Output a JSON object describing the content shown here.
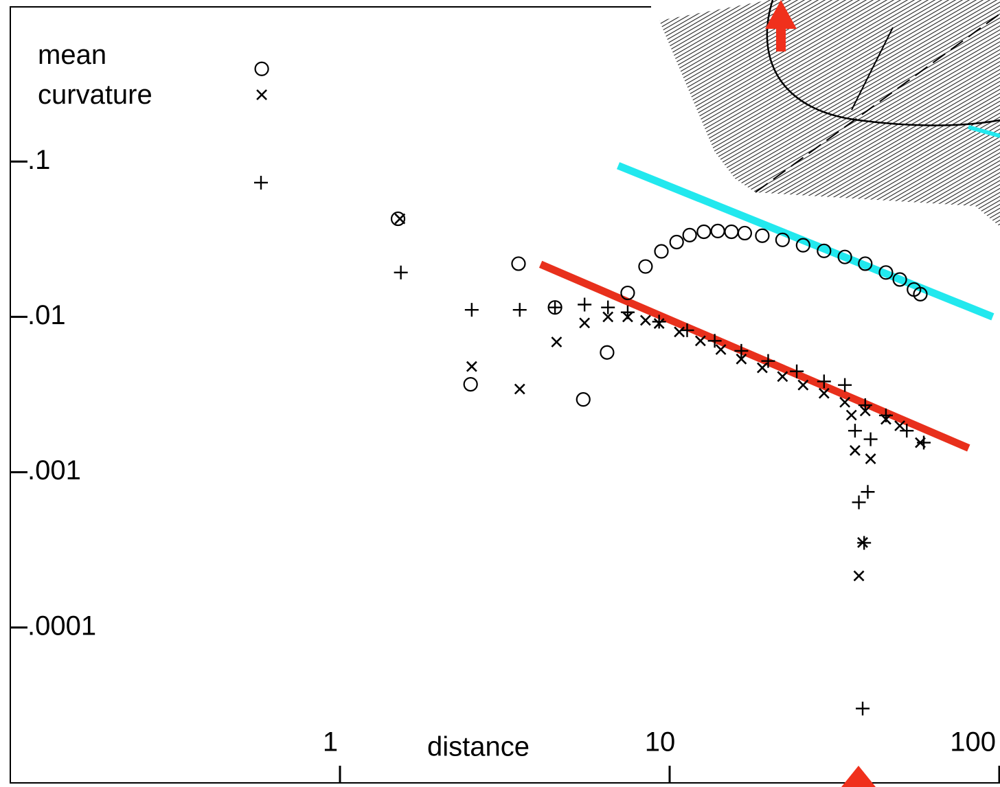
{
  "chart_data": {
    "type": "scatter",
    "xlabel": "distance",
    "ylabel": "mean curvature",
    "xscale": "log",
    "yscale": "log",
    "xlim": [
      0.1,
      100
    ],
    "ylim": [
      1e-05,
      1
    ],
    "xticks": [
      1,
      10,
      100
    ],
    "yticks": [
      {
        "value": 0.1,
        "label": ".1"
      },
      {
        "value": 0.01,
        "label": ".01"
      },
      {
        "value": 0.001,
        "label": ".001"
      },
      {
        "value": 0.0001,
        "label": ".0001"
      }
    ],
    "series": [
      {
        "marker": "circle",
        "color": "#000000",
        "x": [
          0.579,
          1.5,
          3.48,
          2.49,
          4.49,
          5.47,
          6.46,
          7.46,
          8.45,
          9.44,
          10.5,
          11.5,
          12.7,
          14.0,
          15.4,
          16.9,
          19.1,
          22.0,
          25.4,
          29.4,
          34.0,
          39.2,
          45.3,
          49.9,
          55.1,
          57.6
        ],
        "values": [
          0.395,
          0.0428,
          0.022,
          0.00368,
          0.0115,
          0.00294,
          0.0059,
          0.01426,
          0.0211,
          0.0264,
          0.0303,
          0.0336,
          0.0353,
          0.0357,
          0.0353,
          0.0346,
          0.0333,
          0.0313,
          0.0289,
          0.0266,
          0.0243,
          0.022,
          0.0193,
          0.0174,
          0.015,
          0.014
        ]
      },
      {
        "marker": "x",
        "color": "#000000",
        "x": [
          0.579,
          1.52,
          2.51,
          3.51,
          4.54,
          5.52,
          6.5,
          7.46,
          8.45,
          9.29,
          10.7,
          12.4,
          14.3,
          16.5,
          19.1,
          22.0,
          25.4,
          29.4,
          34.0,
          39.2,
          45.3,
          49.9,
          57.6,
          35.6,
          36.5,
          40.7,
          38.5,
          37.5
        ],
        "values": [
          0.269,
          0.0428,
          0.00479,
          0.00343,
          0.00689,
          0.00914,
          0.01,
          0.01,
          0.0095,
          0.00906,
          0.008,
          0.00701,
          0.00616,
          0.00535,
          0.0047,
          0.00413,
          0.00364,
          0.00322,
          0.00282,
          0.00248,
          0.00219,
          0.00199,
          0.00155,
          0.00233,
          0.00138,
          0.00122,
          0.000353,
          0.000215
        ]
      },
      {
        "marker": "plus",
        "color": "#000000",
        "x": [
          0.576,
          1.53,
          2.51,
          3.51,
          4.49,
          5.52,
          6.5,
          7.46,
          9.29,
          11.3,
          13.7,
          16.5,
          19.9,
          24.3,
          29.4,
          34.0,
          39.2,
          45.3,
          52.4,
          59.0,
          36.5,
          40.7,
          39.9,
          37.5,
          38.9,
          38.5
        ],
        "values": [
          0.0731,
          0.0193,
          0.0111,
          0.0111,
          0.0115,
          0.012,
          0.0115,
          0.0107,
          0.00931,
          0.0082,
          0.00701,
          0.00604,
          0.0052,
          0.00446,
          0.00384,
          0.00364,
          0.0027,
          0.00232,
          0.00185,
          0.00155,
          0.00185,
          0.00163,
          0.000747,
          0.00064,
          0.000351,
          3.01e-05
        ]
      }
    ],
    "fits": [
      {
        "color": "#e8301c",
        "x": [
          4.06,
          80.7
        ],
        "values": [
          0.0218,
          0.00143
        ]
      },
      {
        "color": "#22e8ee",
        "x": [
          6.98,
          95.5
        ],
        "values": [
          0.0941,
          0.01
        ]
      }
    ]
  }
}
